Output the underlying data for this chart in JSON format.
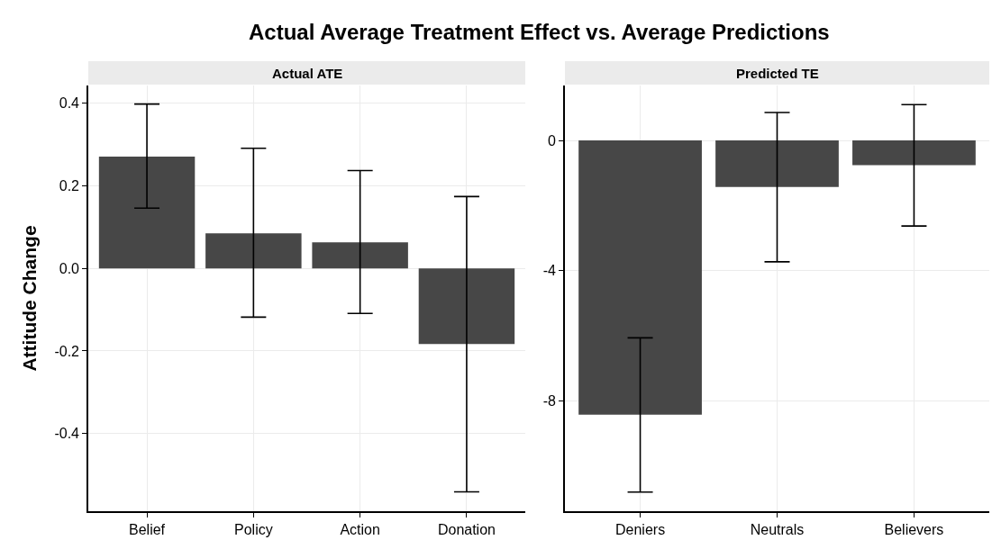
{
  "chart_data": [
    {
      "type": "bar",
      "title": "Actual Average Treatment Effect vs. Average Predictions",
      "subtitle": "Actual ATE",
      "ylabel": "Attitude Change",
      "categories": [
        "Belief",
        "Policy",
        "Action",
        "Donation"
      ],
      "series": [
        {
          "color": "#474747",
          "values": [
            0.271,
            0.085,
            0.063,
            -0.183
          ],
          "errors": [
            [
              0.146,
              0.398
            ],
            [
              -0.118,
              0.291
            ],
            [
              -0.109,
              0.237
            ],
            [
              -0.541,
              0.174
            ]
          ]
        }
      ],
      "ylim": [
        -0.588,
        0.443
      ],
      "yticks": [
        {
          "value": -0.4,
          "label": "-0.4"
        },
        {
          "value": -0.2,
          "label": "-0.2"
        },
        {
          "value": 0,
          "label": "0.0"
        },
        {
          "value": 0.2,
          "label": "0.2"
        },
        {
          "value": 0.4,
          "label": "0.4"
        }
      ],
      "grid": true
    },
    {
      "type": "bar",
      "subtitle": "Predicted TE",
      "categories": [
        "Deniers",
        "Neutrals",
        "Believers"
      ],
      "series": [
        {
          "color": "#474747",
          "values": [
            -8.43,
            -1.43,
            -0.76
          ],
          "errors": [
            [
              -10.81,
              -6.07
            ],
            [
              -3.73,
              0.86
            ],
            [
              -2.63,
              1.1
            ]
          ]
        }
      ],
      "ylim": [
        -11.4,
        1.69
      ],
      "yticks": [
        -8,
        -4,
        0
      ],
      "grid": true
    }
  ]
}
